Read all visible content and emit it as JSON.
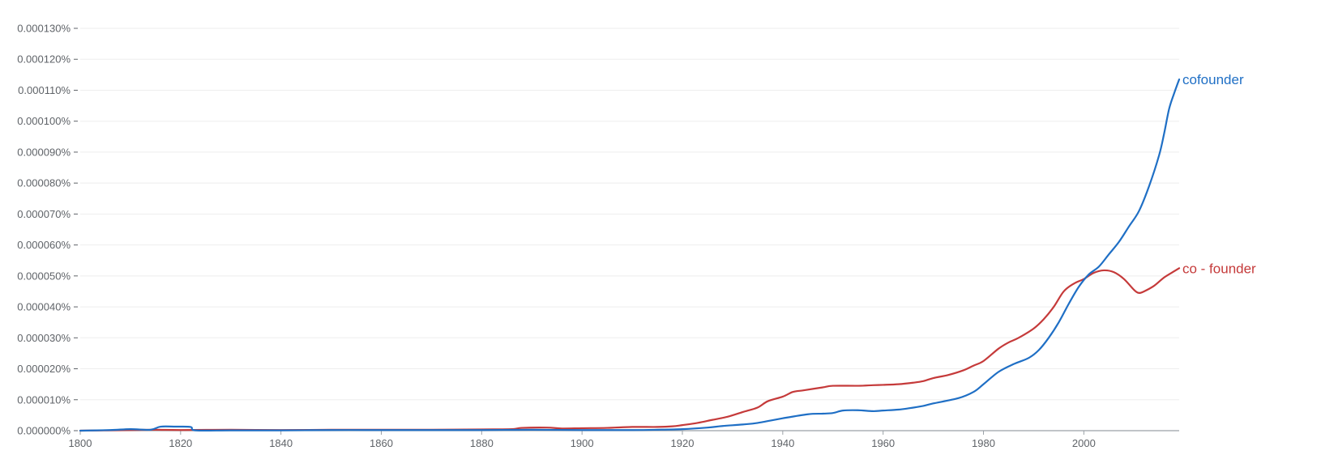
{
  "chart_data": {
    "type": "line",
    "title": "",
    "xlabel": "",
    "ylabel": "",
    "xlim": [
      1800,
      2019
    ],
    "ylim": [
      0,
      0.00013
    ],
    "grid": true,
    "legend": "inline labels at line ends (right)",
    "x_ticks": [
      1800,
      1820,
      1840,
      1860,
      1880,
      1900,
      1920,
      1940,
      1960,
      1980,
      2000
    ],
    "y_ticks": [
      {
        "value": 0.0,
        "label": "0.000000%"
      },
      {
        "value": 1e-05,
        "label": "0.000010%"
      },
      {
        "value": 2e-05,
        "label": "0.000020%"
      },
      {
        "value": 3e-05,
        "label": "0.000030%"
      },
      {
        "value": 4e-05,
        "label": "0.000040%"
      },
      {
        "value": 5e-05,
        "label": "0.000050%"
      },
      {
        "value": 6e-05,
        "label": "0.000060%"
      },
      {
        "value": 7e-05,
        "label": "0.000070%"
      },
      {
        "value": 8e-05,
        "label": "0.000080%"
      },
      {
        "value": 9e-05,
        "label": "0.000090%"
      },
      {
        "value": 0.0001,
        "label": "0.000100%"
      },
      {
        "value": 0.00011,
        "label": "0.000110%"
      },
      {
        "value": 0.00012,
        "label": "0.000120%"
      },
      {
        "value": 0.00013,
        "label": "0.000130%"
      }
    ],
    "series": [
      {
        "name": "cofounder",
        "color": "#1f6fc5",
        "points": [
          [
            1800,
            0.0
          ],
          [
            1806,
            2e-07
          ],
          [
            1810,
            5e-07
          ],
          [
            1814,
            3e-07
          ],
          [
            1816,
            1.3e-06
          ],
          [
            1819,
            1.3e-06
          ],
          [
            1822,
            1.2e-06
          ],
          [
            1823,
            1e-07
          ],
          [
            1830,
            1e-07
          ],
          [
            1840,
            1e-07
          ],
          [
            1850,
            2e-07
          ],
          [
            1860,
            2e-07
          ],
          [
            1870,
            2e-07
          ],
          [
            1880,
            2e-07
          ],
          [
            1890,
            3e-07
          ],
          [
            1900,
            2e-07
          ],
          [
            1910,
            2e-07
          ],
          [
            1915,
            3e-07
          ],
          [
            1920,
            5e-07
          ],
          [
            1925,
            1e-06
          ],
          [
            1928,
            1.5e-06
          ],
          [
            1932,
            2e-06
          ],
          [
            1935,
            2.5e-06
          ],
          [
            1940,
            4e-06
          ],
          [
            1945,
            5.3e-06
          ],
          [
            1948,
            5.5e-06
          ],
          [
            1950,
            5.7e-06
          ],
          [
            1952,
            6.5e-06
          ],
          [
            1955,
            6.6e-06
          ],
          [
            1958,
            6.3e-06
          ],
          [
            1960,
            6.5e-06
          ],
          [
            1963,
            6.8e-06
          ],
          [
            1965,
            7.2e-06
          ],
          [
            1968,
            8e-06
          ],
          [
            1970,
            8.8e-06
          ],
          [
            1975,
            1.05e-05
          ],
          [
            1978,
            1.25e-05
          ],
          [
            1980,
            1.5e-05
          ],
          [
            1983,
            1.9e-05
          ],
          [
            1986,
            2.15e-05
          ],
          [
            1989,
            2.35e-05
          ],
          [
            1991,
            2.6e-05
          ],
          [
            1993,
            3e-05
          ],
          [
            1995,
            3.5e-05
          ],
          [
            1997,
            4.1e-05
          ],
          [
            1999,
            4.65e-05
          ],
          [
            2001,
            5.05e-05
          ],
          [
            2003,
            5.3e-05
          ],
          [
            2005,
            5.7e-05
          ],
          [
            2007,
            6.1e-05
          ],
          [
            2009,
            6.6e-05
          ],
          [
            2011,
            7.1e-05
          ],
          [
            2013,
            7.9e-05
          ],
          [
            2015,
            8.9e-05
          ],
          [
            2016,
            9.6e-05
          ],
          [
            2017,
            0.000104
          ],
          [
            2018,
            0.000109
          ],
          [
            2019,
            0.0001135
          ]
        ]
      },
      {
        "name": "co - founder",
        "color": "#c53a3a",
        "points": [
          [
            1800,
            0.0
          ],
          [
            1810,
            2e-07
          ],
          [
            1815,
            3e-07
          ],
          [
            1820,
            2e-07
          ],
          [
            1830,
            3e-07
          ],
          [
            1840,
            2e-07
          ],
          [
            1850,
            3e-07
          ],
          [
            1860,
            3e-07
          ],
          [
            1870,
            3e-07
          ],
          [
            1880,
            4e-07
          ],
          [
            1886,
            5e-07
          ],
          [
            1888,
            9e-07
          ],
          [
            1893,
            1e-06
          ],
          [
            1896,
            7e-07
          ],
          [
            1900,
            8e-07
          ],
          [
            1905,
            9e-07
          ],
          [
            1910,
            1.2e-06
          ],
          [
            1915,
            1.2e-06
          ],
          [
            1918,
            1.4e-06
          ],
          [
            1920,
            1.8e-06
          ],
          [
            1923,
            2.5e-06
          ],
          [
            1926,
            3.5e-06
          ],
          [
            1929,
            4.5e-06
          ],
          [
            1932,
            6e-06
          ],
          [
            1935,
            7.5e-06
          ],
          [
            1937,
            9.5e-06
          ],
          [
            1940,
            1.1e-05
          ],
          [
            1942,
            1.25e-05
          ],
          [
            1944,
            1.3e-05
          ],
          [
            1946,
            1.35e-05
          ],
          [
            1948,
            1.4e-05
          ],
          [
            1950,
            1.45e-05
          ],
          [
            1955,
            1.45e-05
          ],
          [
            1958,
            1.47e-05
          ],
          [
            1960,
            1.48e-05
          ],
          [
            1963,
            1.5e-05
          ],
          [
            1966,
            1.55e-05
          ],
          [
            1968,
            1.6e-05
          ],
          [
            1970,
            1.7e-05
          ],
          [
            1973,
            1.8e-05
          ],
          [
            1976,
            1.95e-05
          ],
          [
            1978,
            2.1e-05
          ],
          [
            1980,
            2.25e-05
          ],
          [
            1983,
            2.65e-05
          ],
          [
            1985,
            2.85e-05
          ],
          [
            1987,
            3e-05
          ],
          [
            1990,
            3.3e-05
          ],
          [
            1992,
            3.6e-05
          ],
          [
            1994,
            4e-05
          ],
          [
            1996,
            4.5e-05
          ],
          [
            1998,
            4.75e-05
          ],
          [
            2000,
            4.9e-05
          ],
          [
            2002,
            5.1e-05
          ],
          [
            2004,
            5.18e-05
          ],
          [
            2006,
            5.12e-05
          ],
          [
            2008,
            4.9e-05
          ],
          [
            2010,
            4.55e-05
          ],
          [
            2011,
            4.45e-05
          ],
          [
            2012,
            4.5e-05
          ],
          [
            2014,
            4.68e-05
          ],
          [
            2016,
            4.95e-05
          ],
          [
            2018,
            5.15e-05
          ],
          [
            2019,
            5.25e-05
          ]
        ]
      }
    ]
  }
}
